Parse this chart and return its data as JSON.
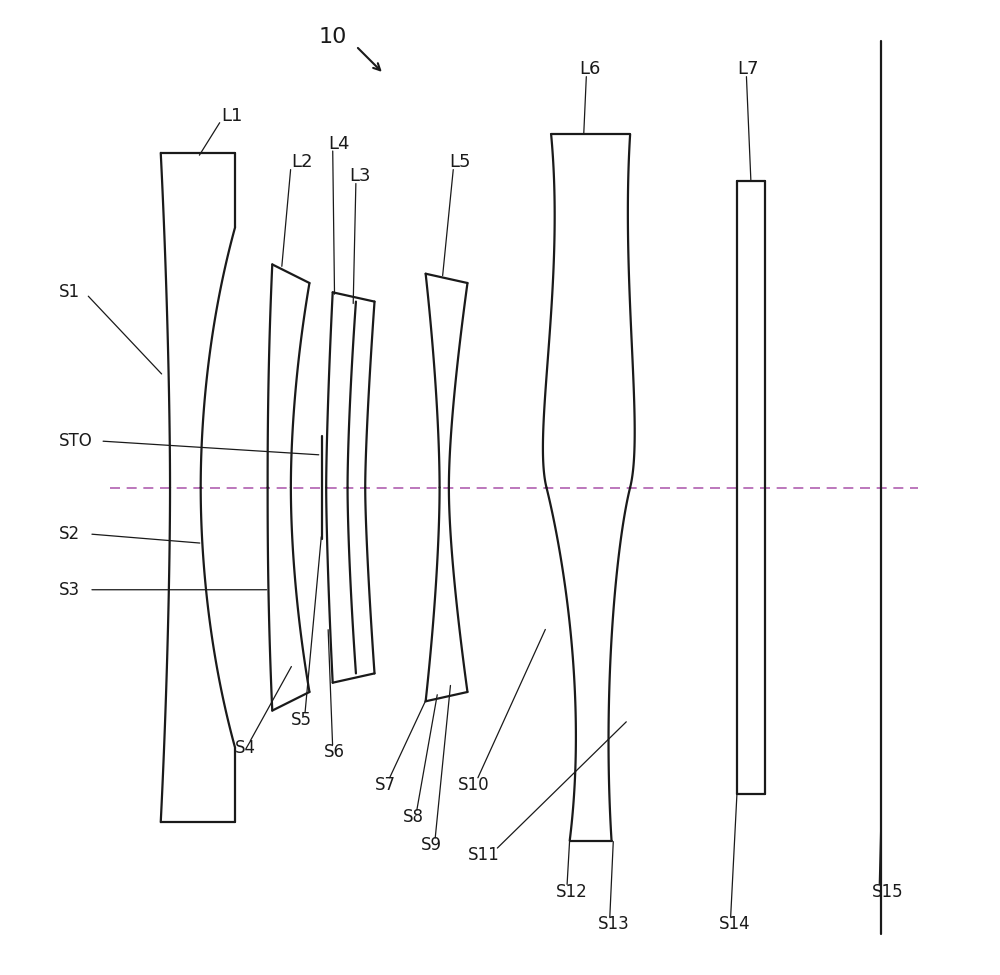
{
  "background_color": "#ffffff",
  "line_color": "#1a1a1a",
  "axis_line_color": "#b060b0",
  "lw": 1.6,
  "label_fontsize": 13,
  "xlim": [
    0,
    10
  ],
  "ylim": [
    -5.2,
    5.2
  ]
}
